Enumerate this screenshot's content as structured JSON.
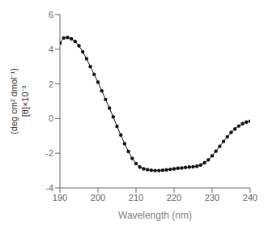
{
  "chart_data": {
    "type": "line",
    "x": [
      190,
      191,
      192,
      193,
      194,
      195,
      196,
      197,
      198,
      199,
      200,
      201,
      202,
      203,
      204,
      205,
      206,
      207,
      208,
      209,
      210,
      211,
      212,
      213,
      214,
      215,
      216,
      217,
      218,
      219,
      220,
      221,
      222,
      223,
      224,
      225,
      226,
      227,
      228,
      229,
      230,
      231,
      232,
      233,
      234,
      235,
      236,
      237,
      238,
      239,
      240
    ],
    "values": [
      4.35,
      4.65,
      4.68,
      4.6,
      4.45,
      4.2,
      3.85,
      3.45,
      3.0,
      2.55,
      2.1,
      1.6,
      1.1,
      0.6,
      0.1,
      -0.45,
      -0.95,
      -1.45,
      -1.9,
      -2.3,
      -2.6,
      -2.8,
      -2.9,
      -2.95,
      -2.98,
      -3.0,
      -3.0,
      -2.98,
      -2.96,
      -2.93,
      -2.9,
      -2.87,
      -2.85,
      -2.82,
      -2.8,
      -2.78,
      -2.75,
      -2.68,
      -2.55,
      -2.38,
      -2.15,
      -1.88,
      -1.6,
      -1.32,
      -1.05,
      -0.8,
      -0.6,
      -0.43,
      -0.3,
      -0.2,
      -0.15
    ],
    "xlabel": "Wavelength (nm)",
    "ylabel": "(deg cm² dmol⁻¹)\n[θ]×10⁻³",
    "xlim": [
      190,
      240
    ],
    "ylim": [
      -4,
      6
    ],
    "xticks": [
      190,
      200,
      210,
      220,
      230,
      240
    ],
    "yticks": [
      -4,
      -2,
      0,
      2,
      4,
      6
    ],
    "color": "#111111",
    "marker": "circle",
    "line_style": "solid",
    "grid": false
  }
}
